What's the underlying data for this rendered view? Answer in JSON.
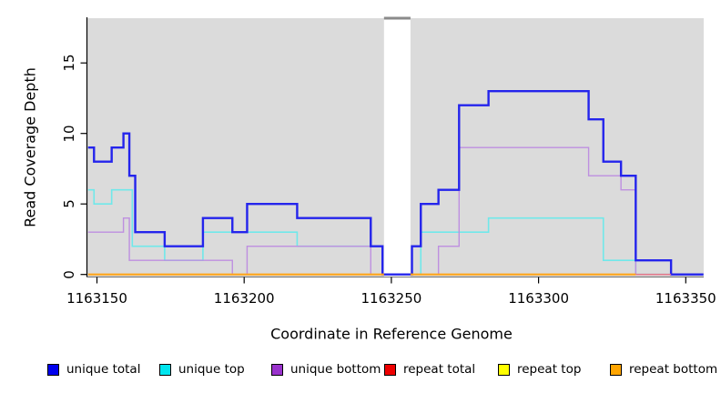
{
  "axes": {
    "x_label": "Coordinate in Reference Genome",
    "y_label": "Read Coverage Depth",
    "x_ticks": [
      {
        "label": "1163150",
        "value": 1163150
      },
      {
        "label": "1163200",
        "value": 1163200
      },
      {
        "label": "1163250",
        "value": 1163250
      },
      {
        "label": "1163300",
        "value": 1163300
      },
      {
        "label": "1163350",
        "value": 1163350
      }
    ],
    "y_ticks": [
      {
        "label": "0",
        "value": 0
      },
      {
        "label": "5",
        "value": 5
      },
      {
        "label": "10",
        "value": 10
      },
      {
        "label": "15",
        "value": 15
      }
    ]
  },
  "legend": {
    "items": [
      {
        "label": "unique total",
        "color": "#0000EE"
      },
      {
        "label": "unique top",
        "color": "#00E5EE"
      },
      {
        "label": "unique bottom",
        "color": "#9932CC"
      },
      {
        "label": "repeat total",
        "color": "#EE0000"
      },
      {
        "label": "repeat top",
        "color": "#FFFF00"
      },
      {
        "label": "repeat bottom",
        "color": "#FFA500"
      }
    ]
  },
  "chart_data": {
    "type": "line",
    "title": "",
    "xlabel": "Coordinate in Reference Genome",
    "ylabel": "Read Coverage Depth",
    "xlim": [
      1163147,
      1163356
    ],
    "ylim": [
      0,
      18
    ],
    "step": "after",
    "grid": false,
    "panel_background": "#dbdbdb",
    "masked_region": {
      "x_start": 1163247.5,
      "x_end": 1163256.5,
      "fill": "#ffffff",
      "top_marker_color": "#8a8a8a"
    },
    "series": [
      {
        "name": "unique top",
        "color": "#70E8EA",
        "width": 1.6,
        "z": 1,
        "points": [
          [
            1163147,
            6
          ],
          [
            1163149,
            5
          ],
          [
            1163155,
            6
          ],
          [
            1163162,
            2
          ],
          [
            1163173,
            1
          ],
          [
            1163186,
            3
          ],
          [
            1163218,
            2
          ],
          [
            1163247,
            0
          ],
          [
            1163260,
            3
          ],
          [
            1163283,
            4
          ],
          [
            1163322,
            1
          ],
          [
            1163333,
            0
          ],
          [
            1163356,
            0
          ]
        ]
      },
      {
        "name": "unique bottom",
        "color": "#BE8FE0",
        "width": 1.4,
        "z": 2,
        "points": [
          [
            1163147,
            3
          ],
          [
            1163159,
            4
          ],
          [
            1163161,
            1
          ],
          [
            1163196,
            0
          ],
          [
            1163201,
            2
          ],
          [
            1163243,
            0
          ],
          [
            1163266,
            2
          ],
          [
            1163273,
            9
          ],
          [
            1163317,
            7
          ],
          [
            1163328,
            6
          ],
          [
            1163333,
            0
          ],
          [
            1163356,
            0
          ]
        ]
      },
      {
        "name": "unique total",
        "color": "#2424EC",
        "width": 2.4,
        "z": 3,
        "points": [
          [
            1163147,
            9
          ],
          [
            1163149,
            8
          ],
          [
            1163155,
            9
          ],
          [
            1163159,
            10
          ],
          [
            1163161,
            7
          ],
          [
            1163163,
            3
          ],
          [
            1163173,
            2
          ],
          [
            1163186,
            4
          ],
          [
            1163196,
            3
          ],
          [
            1163201,
            5
          ],
          [
            1163218,
            4
          ],
          [
            1163243,
            2
          ],
          [
            1163247,
            0
          ],
          [
            1163257,
            2
          ],
          [
            1163260,
            5
          ],
          [
            1163266,
            6
          ],
          [
            1163273,
            12
          ],
          [
            1163283,
            13
          ],
          [
            1163317,
            11
          ],
          [
            1163322,
            8
          ],
          [
            1163328,
            7
          ],
          [
            1163333,
            1
          ],
          [
            1163345,
            0
          ],
          [
            1163356,
            0
          ]
        ]
      },
      {
        "name": "repeat total",
        "color": "#E3798C",
        "width": 1.6,
        "z": 4,
        "points": [
          [
            1163333,
            0
          ],
          [
            1163345,
            0
          ]
        ]
      },
      {
        "name": "repeat top",
        "color": "#FFFF00",
        "width": 1.4,
        "z": 5,
        "points": []
      },
      {
        "name": "repeat bottom",
        "color": "#FFA519",
        "width": 2.2,
        "z": 6,
        "segments": [
          [
            [
              1163147,
              0
            ],
            [
              1163247.5,
              0
            ]
          ],
          [
            [
              1163256.5,
              0
            ],
            [
              1163333,
              0
            ]
          ]
        ]
      }
    ]
  }
}
